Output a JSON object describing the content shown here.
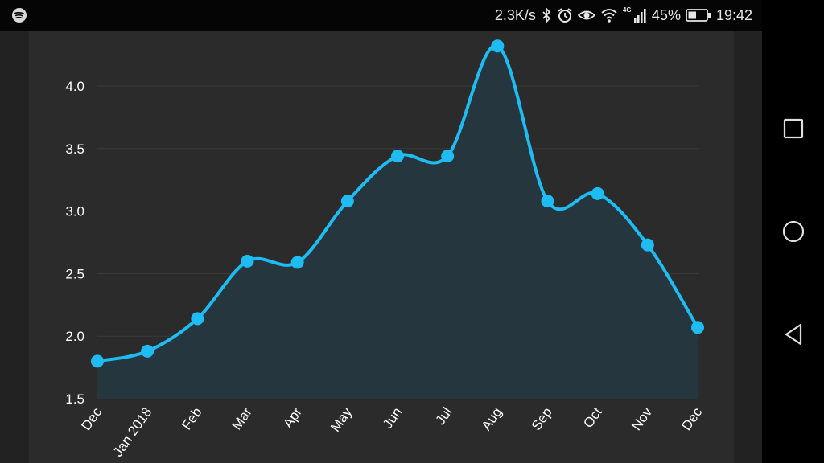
{
  "status_bar": {
    "app_icon": "spotify-icon",
    "network_speed": "2.3K/s",
    "network_type": "4G",
    "battery_percent": "45%",
    "battery_level": 0.45,
    "time": "19:42",
    "icons": [
      "bluetooth-icon",
      "alarm-icon",
      "eye-icon",
      "wifi-icon",
      "signal-icon",
      "battery-icon"
    ]
  },
  "nav_bar": {
    "buttons": [
      "recents-square-icon",
      "home-circle-icon",
      "back-triangle-icon"
    ]
  },
  "chart_data": {
    "type": "area",
    "categories": [
      "Dec",
      "Jan 2018",
      "Feb",
      "Mar",
      "Apr",
      "May",
      "Jun",
      "Jul",
      "Aug",
      "Sep",
      "Oct",
      "Nov",
      "Dec"
    ],
    "values": [
      1.8,
      1.88,
      2.14,
      2.6,
      2.59,
      3.08,
      3.44,
      3.44,
      4.32,
      3.08,
      3.14,
      2.73,
      2.07
    ],
    "yticks": [
      "1.5",
      "2.0",
      "2.5",
      "3.0",
      "3.5",
      "4.0"
    ],
    "ylim": [
      1.5,
      4.4
    ],
    "grid": true,
    "line_color": "#1ebcf2",
    "fill_color": "#263740",
    "grid_color": "#3a3a3a"
  }
}
